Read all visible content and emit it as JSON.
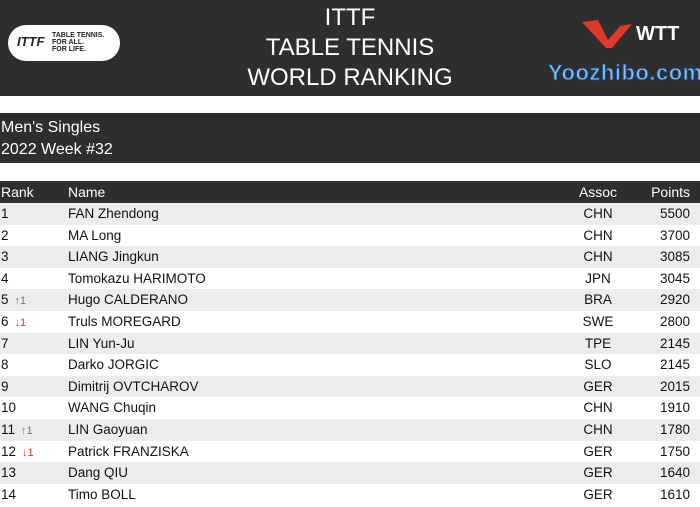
{
  "header": {
    "title_lines": [
      "ITTF",
      "TABLE TENNIS",
      "WORLD RANKING"
    ],
    "ittf_logo": [
      "TABLE TENNIS.",
      "FOR ALL.",
      "FOR LIFE."
    ],
    "wtt_logo": "WTT",
    "accent": "#e0392b"
  },
  "subtitle": {
    "category": "Men's Singles",
    "week": "2022 Week #32"
  },
  "columns": {
    "rank": "Rank",
    "name": "Name",
    "assoc": "Assoc",
    "points": "Points"
  },
  "rows": [
    {
      "rank": "1",
      "change": "",
      "dir": "",
      "name": "FAN Zhendong",
      "assoc": "CHN",
      "points": "5500"
    },
    {
      "rank": "2",
      "change": "",
      "dir": "",
      "name": "MA Long",
      "assoc": "CHN",
      "points": "3700"
    },
    {
      "rank": "3",
      "change": "",
      "dir": "",
      "name": "LIANG Jingkun",
      "assoc": "CHN",
      "points": "3085"
    },
    {
      "rank": "4",
      "change": "",
      "dir": "",
      "name": "Tomokazu HARIMOTO",
      "assoc": "JPN",
      "points": "3045"
    },
    {
      "rank": "5",
      "change": "↑1",
      "dir": "up",
      "name": "Hugo CALDERANO",
      "assoc": "BRA",
      "points": "2920"
    },
    {
      "rank": "6",
      "change": "↓1",
      "dir": "down",
      "name": "Truls MOREGARD",
      "assoc": "SWE",
      "points": "2800"
    },
    {
      "rank": "7",
      "change": "",
      "dir": "",
      "name": "LIN Yun-Ju",
      "assoc": "TPE",
      "points": "2145"
    },
    {
      "rank": "8",
      "change": "",
      "dir": "",
      "name": "Darko JORGIC",
      "assoc": "SLO",
      "points": "2145"
    },
    {
      "rank": "9",
      "change": "",
      "dir": "",
      "name": "Dimitrij OVTCHAROV",
      "assoc": "GER",
      "points": "2015"
    },
    {
      "rank": "10",
      "change": "",
      "dir": "",
      "name": "WANG Chuqin",
      "assoc": "CHN",
      "points": "1910"
    },
    {
      "rank": "11",
      "change": "↑1",
      "dir": "up",
      "name": "LIN Gaoyuan",
      "assoc": "CHN",
      "points": "1780"
    },
    {
      "rank": "12",
      "change": "↓1",
      "dir": "down",
      "name": "Patrick FRANZISKA",
      "assoc": "GER",
      "points": "1750"
    },
    {
      "rank": "13",
      "change": "",
      "dir": "",
      "name": "Dang QIU",
      "assoc": "GER",
      "points": "1640"
    },
    {
      "rank": "14",
      "change": "",
      "dir": "",
      "name": "Timo BOLL",
      "assoc": "GER",
      "points": "1610"
    }
  ],
  "watermark": "Yoozhibo.com"
}
